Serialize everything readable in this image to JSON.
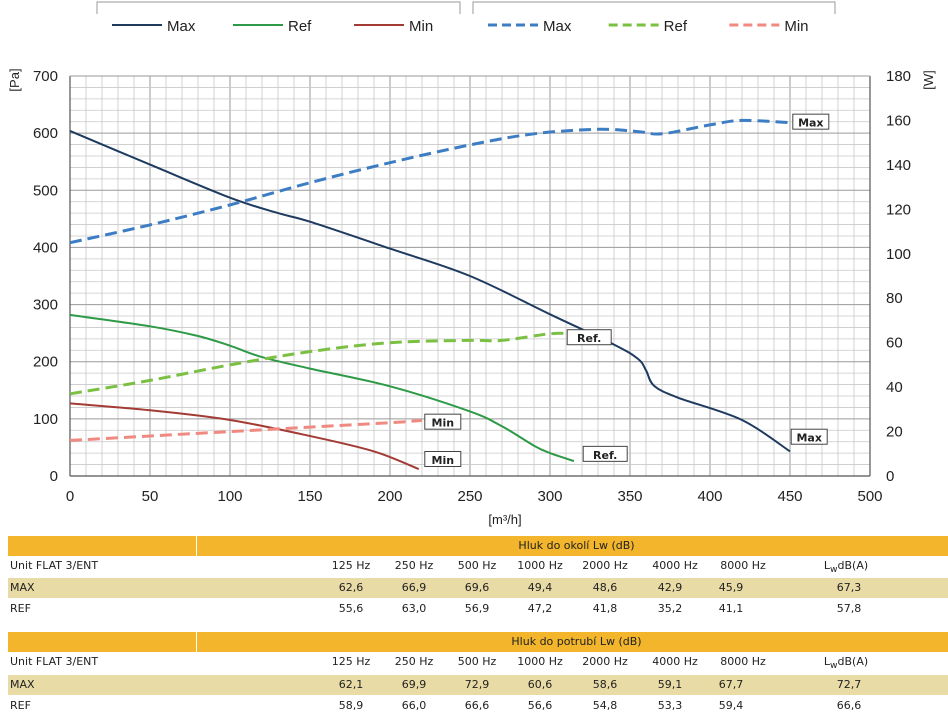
{
  "chart_data": {
    "type": "line",
    "xlabel": "[m³/h]",
    "ylabel": "[Pa]",
    "y2label": "[W]",
    "xlim": [
      0,
      500
    ],
    "ylim": [
      0,
      700
    ],
    "y2lim": [
      0,
      180
    ],
    "xticks": [
      0,
      50,
      100,
      150,
      200,
      250,
      300,
      350,
      400,
      450,
      500
    ],
    "yticks": [
      0,
      100,
      200,
      300,
      400,
      500,
      600,
      700
    ],
    "y2ticks": [
      0,
      20,
      40,
      60,
      80,
      100,
      120,
      140,
      160,
      180
    ],
    "grid": true,
    "legend_position": "top",
    "legend_groups": [
      "pressure",
      "power"
    ],
    "series": [
      {
        "name": "Max",
        "axis": "left",
        "style": "solid",
        "color": "#1f3a5f",
        "x": [
          0,
          50,
          100,
          130,
          150,
          200,
          250,
          300,
          340,
          355,
          360,
          365,
          380,
          420,
          450
        ],
        "y": [
          604,
          545,
          487,
          460,
          445,
          398,
          350,
          283,
          230,
          205,
          185,
          158,
          137,
          98,
          43
        ]
      },
      {
        "name": "Ref",
        "axis": "left",
        "style": "solid",
        "color": "#2e9a47",
        "x": [
          0,
          50,
          80,
          100,
          120,
          150,
          200,
          250,
          270,
          290,
          300,
          315
        ],
        "y": [
          282,
          262,
          245,
          228,
          208,
          188,
          157,
          113,
          87,
          53,
          40,
          26
        ]
      },
      {
        "name": "Min",
        "axis": "left",
        "style": "solid",
        "color": "#a33b35",
        "x": [
          0,
          50,
          100,
          150,
          190,
          218
        ],
        "y": [
          127,
          115,
          98,
          70,
          43,
          12
        ]
      },
      {
        "name": "Max",
        "axis": "right",
        "style": "dashed",
        "color": "#3c7dc4",
        "x": [
          0,
          50,
          100,
          150,
          200,
          250,
          290,
          330,
          355,
          370,
          400,
          420,
          450
        ],
        "y": [
          105,
          113,
          122,
          132,
          141,
          149,
          154,
          156,
          155,
          154,
          158,
          160,
          159
        ]
      },
      {
        "name": "Ref",
        "axis": "right",
        "style": "dashed",
        "color": "#7bc043",
        "x": [
          0,
          50,
          100,
          150,
          200,
          250,
          270,
          300,
          315
        ],
        "y": [
          37,
          43,
          50,
          56,
          60,
          61,
          61,
          64,
          64
        ]
      },
      {
        "name": "Min",
        "axis": "right",
        "style": "dashed",
        "color": "#f08a80",
        "x": [
          0,
          50,
          100,
          150,
          200,
          220
        ],
        "y": [
          16,
          18,
          20,
          22,
          24,
          25
        ]
      }
    ],
    "annotations": [
      {
        "text": "Max",
        "x": 453,
        "y": 159,
        "axis": "right"
      },
      {
        "text": "Ref.",
        "x": 312,
        "y": 62,
        "axis": "right"
      },
      {
        "text": "Min",
        "x": 223,
        "y": 24,
        "axis": "right"
      },
      {
        "text": "Max",
        "x": 452,
        "y": 67,
        "axis": "left"
      },
      {
        "text": "Ref.",
        "x": 322,
        "y": 37,
        "axis": "left"
      },
      {
        "text": "Min",
        "x": 223,
        "y": 28,
        "axis": "left"
      }
    ]
  },
  "tables": [
    {
      "title": "Hluk do okolí Lw  (dB)",
      "columns": [
        "Unit FLAT 3/ENT",
        "125 Hz",
        "250 Hz",
        "500 Hz",
        "1000 Hz",
        "2000 Hz",
        "4000 Hz",
        "8000 Hz",
        "dB(A)"
      ],
      "lw_prefix": "L",
      "lw_sub": "w",
      "rows": [
        {
          "label": "MAX",
          "values": [
            "62,6",
            "66,9",
            "69,6",
            "49,4",
            "48,6",
            "42,9",
            "45,9",
            "67,3"
          ]
        },
        {
          "label": "REF",
          "values": [
            "55,6",
            "63,0",
            "56,9",
            "47,2",
            "41,8",
            "35,2",
            "41,1",
            "57,8"
          ]
        }
      ]
    },
    {
      "title": "Hluk do potrubí Lw (dB)",
      "columns": [
        "Unit FLAT 3/ENT",
        "125 Hz",
        "250 Hz",
        "500 Hz",
        "1000 Hz",
        "2000 Hz",
        "4000 Hz",
        "8000 Hz",
        "dB(A)"
      ],
      "lw_prefix": "L",
      "lw_sub": "w",
      "rows": [
        {
          "label": "MAX",
          "values": [
            "62,1",
            "69,9",
            "72,9",
            "60,6",
            "58,6",
            "59,1",
            "67,7",
            "72,7"
          ]
        },
        {
          "label": "REF",
          "values": [
            "58,9",
            "66,0",
            "66,6",
            "56,6",
            "54,8",
            "53,3",
            "59,4",
            "66,6"
          ]
        }
      ]
    }
  ]
}
